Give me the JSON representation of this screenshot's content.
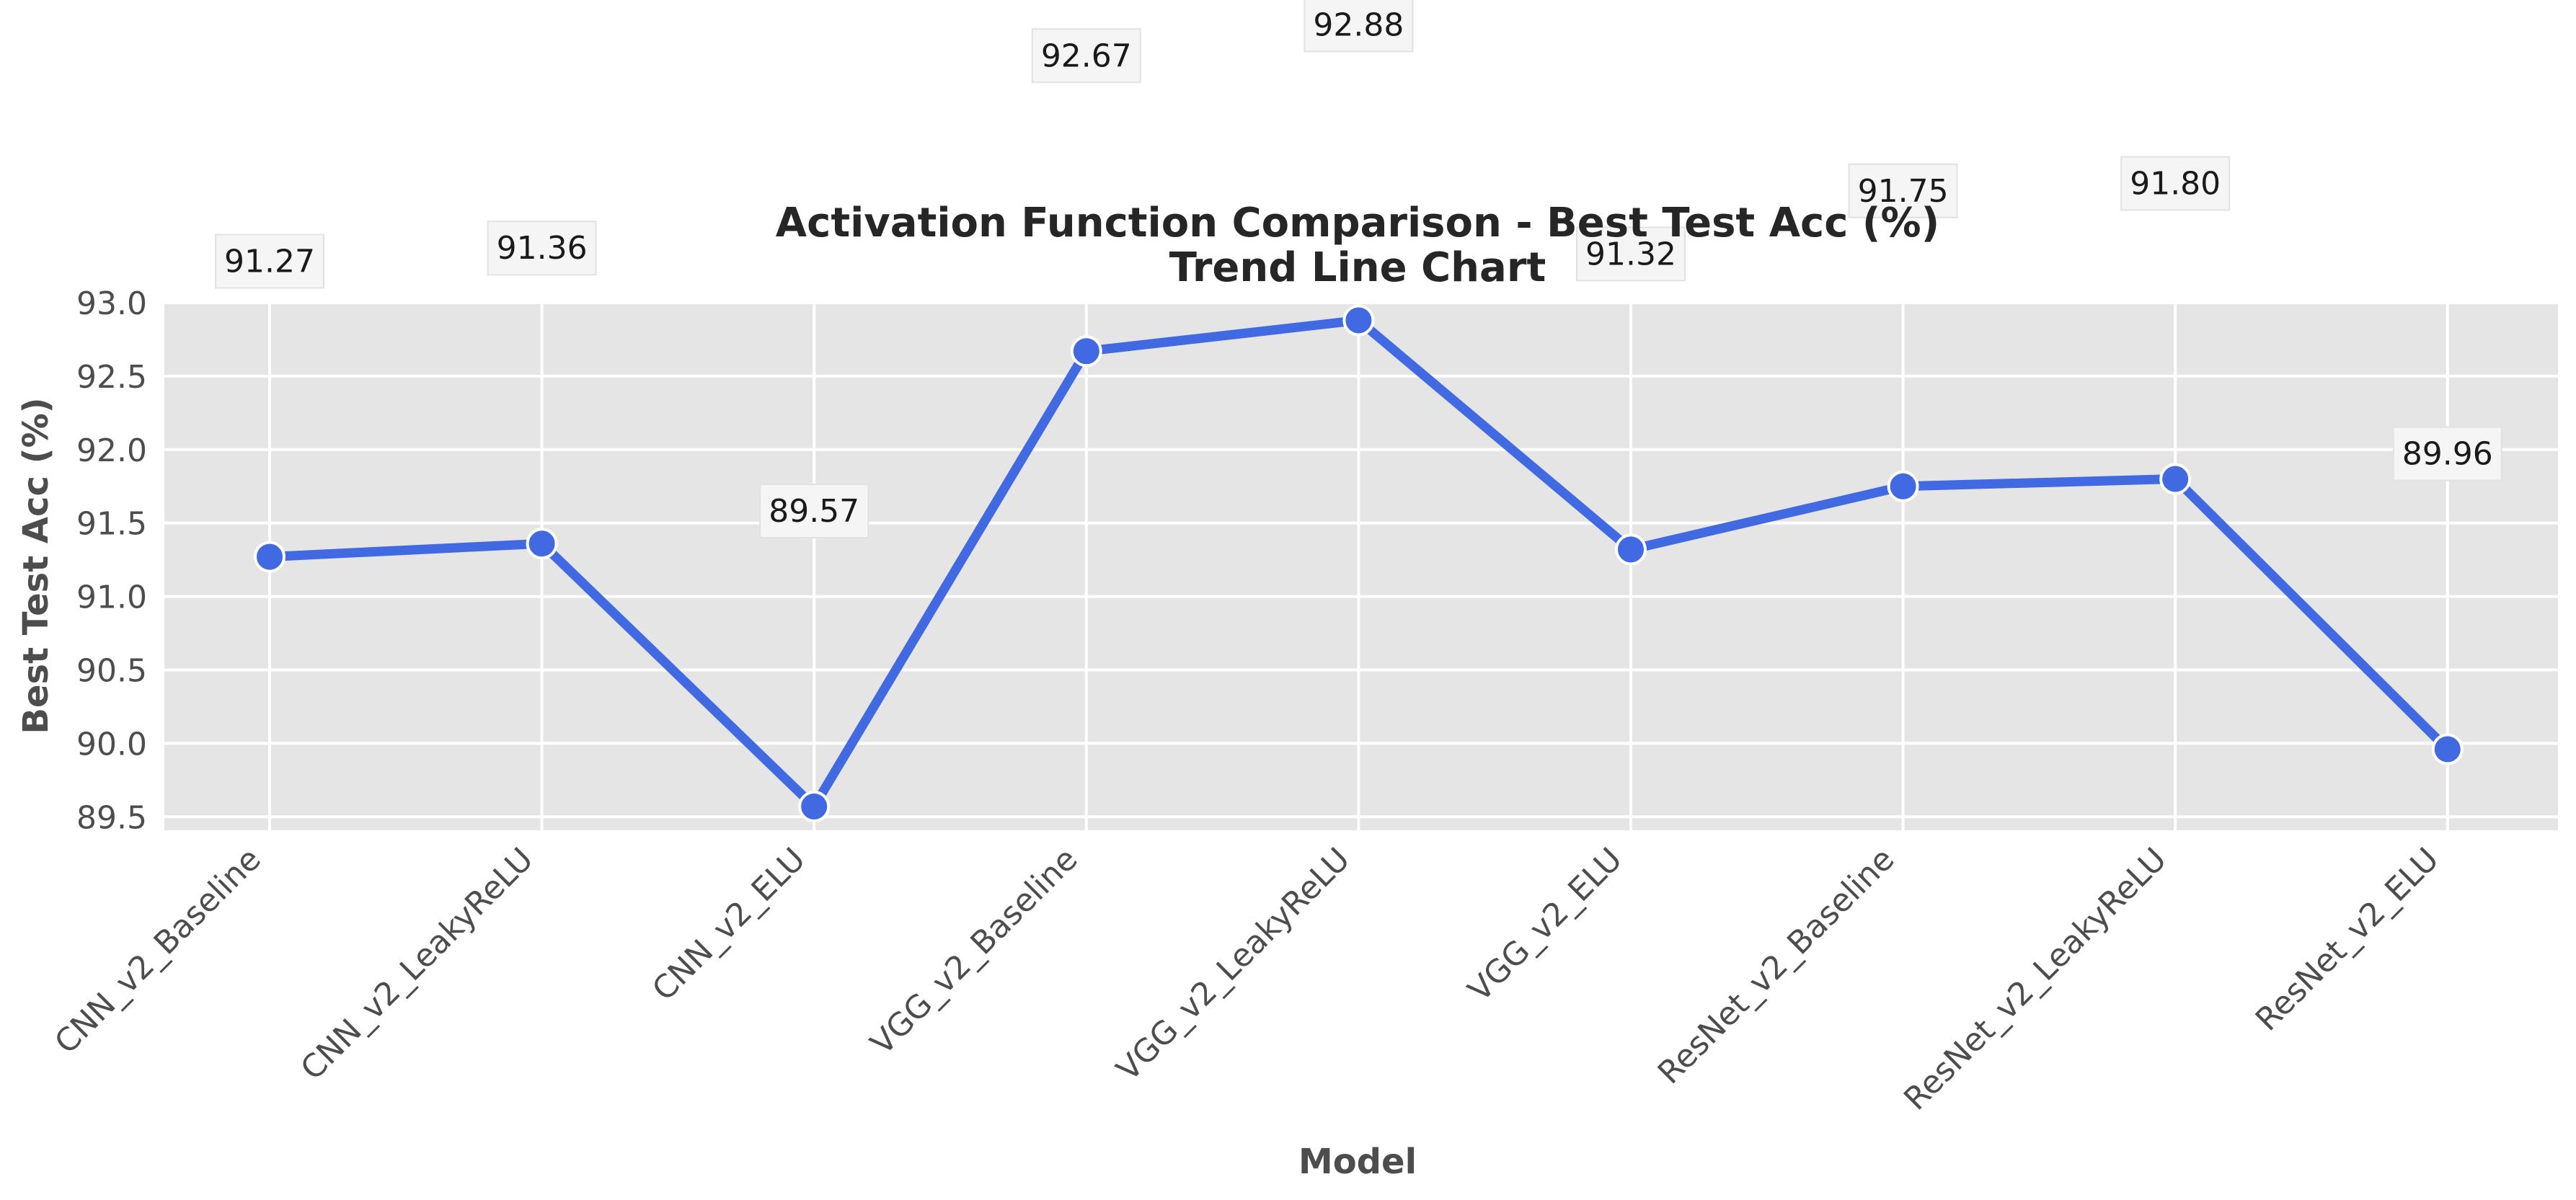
{
  "chart_data": {
    "type": "line",
    "title": "Activation Function Comparison - Best Test Acc (%)",
    "subtitle": "Trend Line Chart",
    "xlabel": "Model",
    "ylabel": "Best Test Acc (%)",
    "categories": [
      "CNN_v2_Baseline",
      "CNN_v2_LeakyReLU",
      "CNN_v2_ELU",
      "VGG_v2_Baseline",
      "VGG_v2_LeakyReLU",
      "VGG_v2_ELU",
      "ResNet_v2_Baseline",
      "ResNet_v2_LeakyReLU",
      "ResNet_v2_ELU"
    ],
    "values": [
      91.27,
      91.36,
      89.57,
      92.67,
      92.88,
      91.32,
      91.75,
      91.8,
      89.96
    ],
    "data_labels": [
      "91.27",
      "91.36",
      "89.57",
      "92.67",
      "92.88",
      "91.32",
      "91.75",
      "91.80",
      "89.96"
    ],
    "yticks": [
      89.5,
      90.0,
      90.5,
      91.0,
      91.5,
      92.0,
      92.5,
      93.0
    ],
    "ytick_labels": [
      "89.5",
      "90.0",
      "90.5",
      "91.0",
      "91.5",
      "92.0",
      "92.5",
      "93.0"
    ],
    "ylim": [
      89.43,
      93.03
    ],
    "grid": true,
    "line_color": "#4169e1",
    "background_color": "#e5e5e5"
  }
}
